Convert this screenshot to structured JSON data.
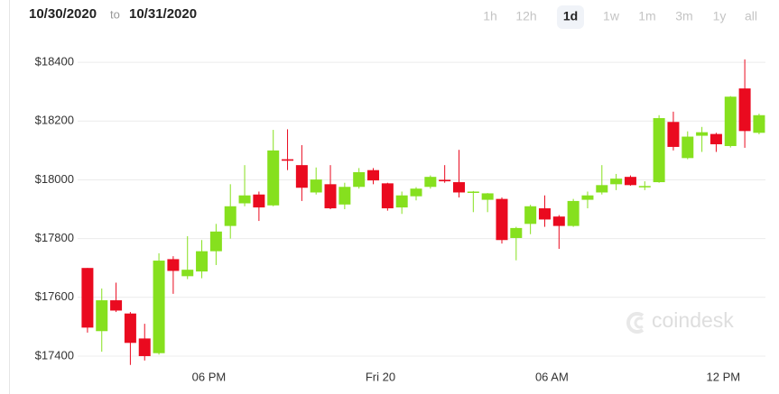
{
  "header": {
    "date_from": "10/30/2020",
    "separator": "to",
    "date_to": "10/31/2020"
  },
  "range_buttons": [
    "1h",
    "12h",
    "1d",
    "1w",
    "1m",
    "3m",
    "1y",
    "all"
  ],
  "selected_range": 2,
  "chart_data": {
    "type": "candlestick",
    "watermark": "coindesk",
    "categories": [
      null,
      null,
      null,
      null,
      null,
      null,
      null,
      null,
      null,
      "06 PM",
      null,
      null,
      null,
      null,
      null,
      null,
      null,
      null,
      null,
      null,
      null,
      "Fri 20",
      null,
      null,
      null,
      null,
      null,
      null,
      null,
      null,
      null,
      null,
      null,
      "06 AM",
      null,
      null,
      null,
      null,
      null,
      null,
      null,
      null,
      null,
      null,
      null,
      "12 PM",
      null,
      null
    ],
    "open": [
      17700,
      17485,
      17590,
      17545,
      17460,
      17410,
      17730,
      17672,
      17688,
      17757,
      17843,
      17920,
      17950,
      17913,
      18070,
      18050,
      17957,
      17985,
      17916,
      17976,
      18033,
      17988,
      17906,
      17944,
      17976,
      18000,
      17992,
      17958,
      17932,
      17935,
      17802,
      17850,
      17903,
      17875,
      17843,
      17932,
      17957,
      17985,
      18010,
      17975,
      17992,
      18197,
      18074,
      18150,
      18156,
      18115,
      18311,
      18160
    ],
    "high": [
      17700,
      17630,
      17650,
      17550,
      17510,
      17750,
      17740,
      17808,
      17795,
      17850,
      17985,
      18050,
      17960,
      18170,
      18172,
      18118,
      18042,
      18050,
      17990,
      18040,
      18040,
      17990,
      17960,
      17975,
      18015,
      18050,
      18102,
      17962,
      17955,
      17940,
      17840,
      17915,
      17947,
      17880,
      17935,
      17960,
      18050,
      18020,
      18015,
      17995,
      18220,
      18232,
      18165,
      18180,
      18160,
      18285,
      18410,
      18225
    ],
    "low": [
      17480,
      17415,
      17550,
      17370,
      17385,
      17405,
      17612,
      17662,
      17665,
      17710,
      17800,
      17910,
      17860,
      17910,
      18033,
      17928,
      17950,
      17900,
      17900,
      17970,
      17985,
      17895,
      17884,
      17930,
      17970,
      17990,
      17940,
      17890,
      17890,
      17783,
      17726,
      17815,
      17840,
      17765,
      17840,
      17903,
      17950,
      17965,
      17980,
      17965,
      17990,
      18100,
      18070,
      18095,
      18095,
      18110,
      18109,
      18155
    ],
    "close": [
      17497,
      17590,
      17555,
      17445,
      17400,
      17725,
      17690,
      17694,
      17757,
      17824,
      17910,
      17947,
      17906,
      18100,
      18065,
      17973,
      18001,
      17903,
      17976,
      18026,
      17998,
      17903,
      17947,
      17970,
      18010,
      17995,
      17957,
      17960,
      17954,
      17795,
      17836,
      17910,
      17865,
      17843,
      17928,
      17947,
      17982,
      18004,
      17982,
      17979,
      18210,
      18112,
      18147,
      18162,
      18121,
      18283,
      18166,
      18220
    ],
    "up_color": "#86e01e",
    "down_color": "#ea0a1f",
    "ylim": [
      17360,
      18520
    ],
    "yticks": [
      {
        "value": 17400,
        "label": "$17400"
      },
      {
        "value": 17600,
        "label": "$17600"
      },
      {
        "value": 17800,
        "label": "$17800"
      },
      {
        "value": 18000,
        "label": "$18000"
      },
      {
        "value": 18200,
        "label": "$18200"
      },
      {
        "value": 18400,
        "label": "$18400"
      }
    ],
    "grid": true
  }
}
